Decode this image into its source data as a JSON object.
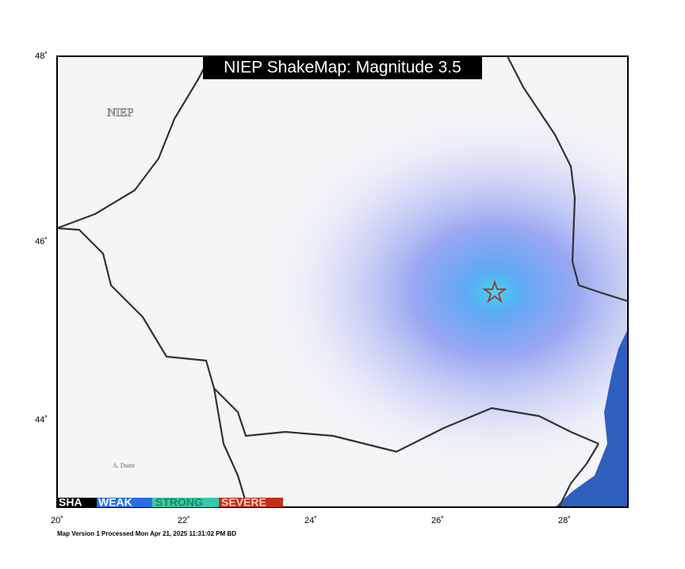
{
  "map": {
    "title": "NIEP ShakeMap: Magnitude 3.5",
    "agency_label": "NIEP",
    "credit": "A. Dumt",
    "lat_labels": [
      "48˚",
      "46˚",
      "44˚"
    ],
    "lon_labels": [
      "20˚",
      "22˚",
      "24˚",
      "26˚",
      "28˚"
    ],
    "legend": [
      "SHA",
      "WEAK",
      "STRONG",
      "SEVERE"
    ],
    "footer": "Map Version 1 Processed Mon Apr 21, 2025 11:31:02 PM BD"
  }
}
